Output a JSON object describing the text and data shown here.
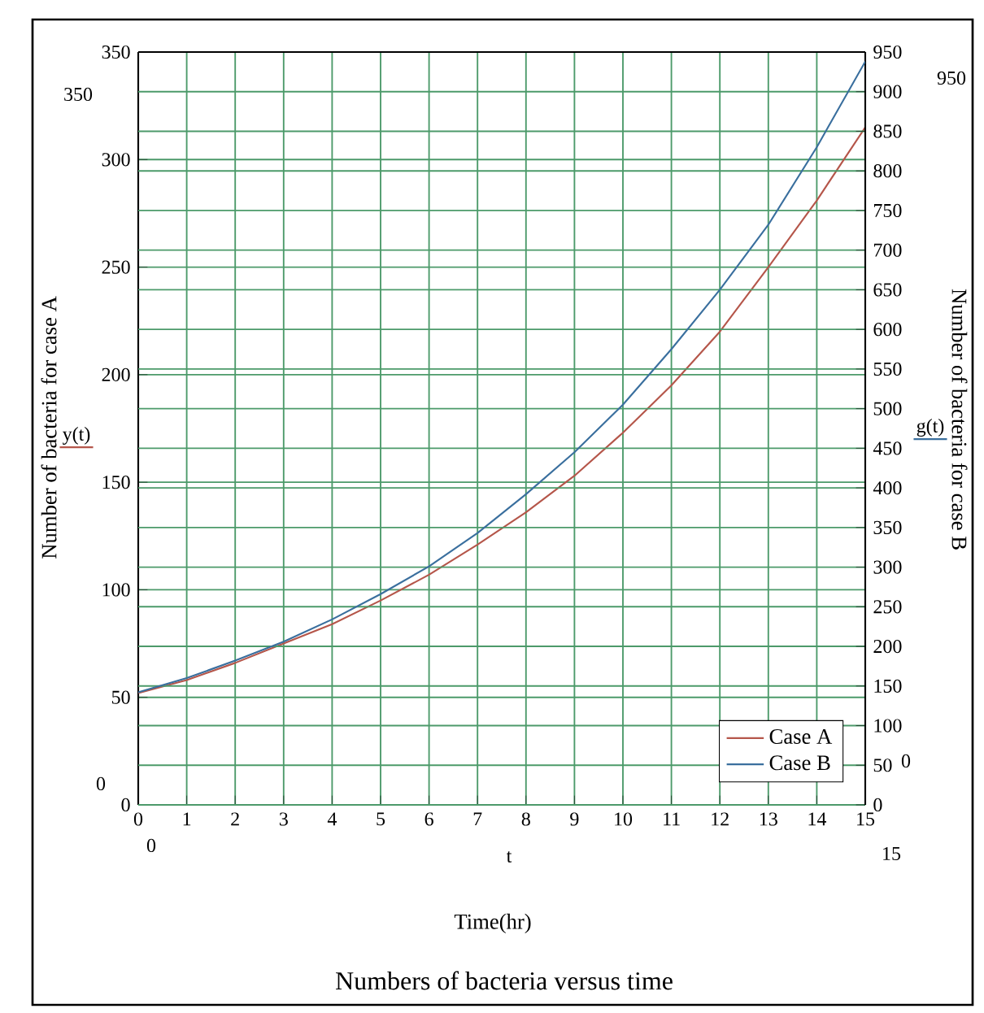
{
  "chart_data": {
    "type": "line",
    "title": "Numbers of bacteria versus time",
    "xlabel": "Time(hr)",
    "ylabel": "Number of bacteria for case A",
    "y2label": "Number of bacteria for case B",
    "x": [
      0,
      1,
      2,
      3,
      4,
      5,
      6,
      7,
      8,
      9,
      10,
      11,
      12,
      13,
      14,
      15
    ],
    "series": [
      {
        "name": "Case A",
        "color": "#b5564a",
        "values": [
          52,
          58,
          66,
          75,
          84,
          95,
          107,
          121,
          136,
          153,
          173,
          195,
          220,
          250,
          281,
          315
        ]
      },
      {
        "name": "Case B",
        "color": "#3a6f9e",
        "axis": "y2",
        "values": [
          142,
          160,
          182,
          206,
          234,
          266,
          301,
          343,
          392,
          445,
          505,
          575,
          650,
          732,
          830,
          938
        ]
      }
    ],
    "xlim": [
      0,
      15
    ],
    "xticks": [
      0,
      1,
      2,
      3,
      4,
      5,
      6,
      7,
      8,
      9,
      10,
      11,
      12,
      13,
      14,
      15
    ],
    "ylim": [
      0,
      350
    ],
    "yticks": [
      0,
      50,
      100,
      150,
      200,
      250,
      300,
      350
    ],
    "y2lim": [
      0,
      950
    ],
    "y2ticks": [
      0,
      50,
      100,
      150,
      200,
      250,
      300,
      350,
      400,
      450,
      500,
      550,
      600,
      650,
      700,
      750,
      800,
      850,
      900,
      950
    ],
    "grid": true,
    "legend": "bottom right",
    "marker": "none",
    "line_style": "solid",
    "annotations": [
      "y(t)",
      "g(t)",
      "t",
      "350",
      "0",
      "0",
      "15",
      "950",
      "0"
    ]
  }
}
